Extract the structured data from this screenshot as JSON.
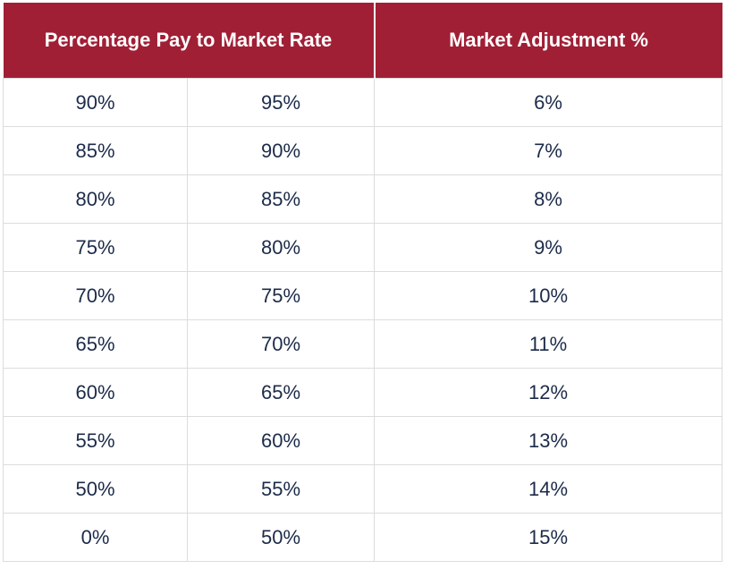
{
  "table": {
    "headers": {
      "percentage_pay": "Percentage Pay to Market Rate",
      "market_adjustment": "Market Adjustment %"
    },
    "rows": [
      {
        "from": "90%",
        "to": "95%",
        "adjustment": "6%"
      },
      {
        "from": "85%",
        "to": "90%",
        "adjustment": "7%"
      },
      {
        "from": "80%",
        "to": "85%",
        "adjustment": "8%"
      },
      {
        "from": "75%",
        "to": "80%",
        "adjustment": "9%"
      },
      {
        "from": "70%",
        "to": "75%",
        "adjustment": "10%"
      },
      {
        "from": "65%",
        "to": "70%",
        "adjustment": "11%"
      },
      {
        "from": "60%",
        "to": "65%",
        "adjustment": "12%"
      },
      {
        "from": "55%",
        "to": "60%",
        "adjustment": "13%"
      },
      {
        "from": "50%",
        "to": "55%",
        "adjustment": "14%"
      },
      {
        "from": "0%",
        "to": "50%",
        "adjustment": "15%"
      }
    ]
  },
  "colors": {
    "header_background": "#a01f35",
    "header_text": "#ffffff",
    "body_text": "#1c2b4a",
    "grid_line": "#dcdcdc"
  }
}
